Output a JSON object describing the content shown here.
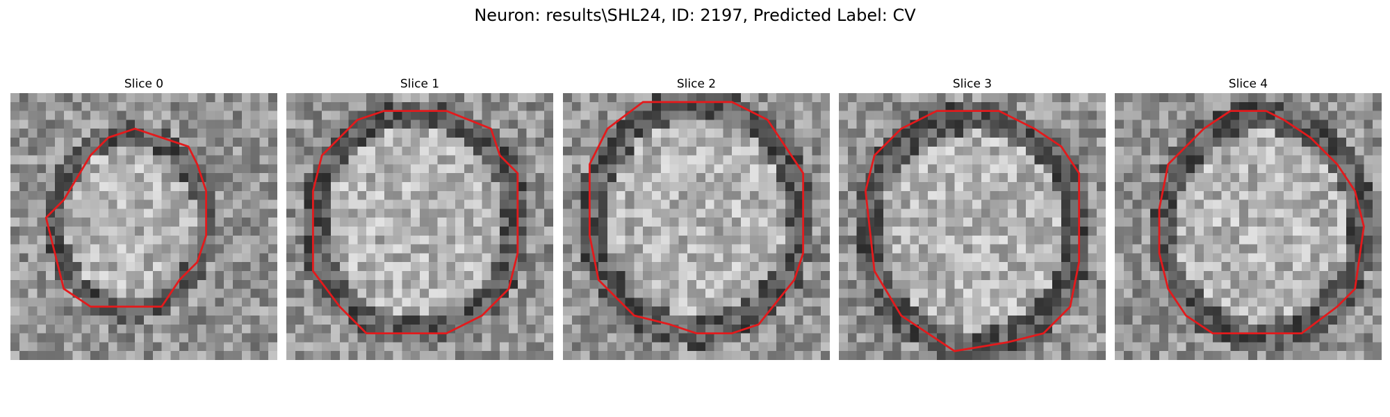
{
  "figure": {
    "title": "Neuron: results\\SHL24, ID: 2197, Predicted Label: CV"
  },
  "colors": {
    "background": "#ffffff",
    "contour": "#e31a1c",
    "pixel_dark": "#1e1e1e",
    "pixel_light": "#f4f4f4"
  },
  "panels": [
    {
      "title": "Slice 0"
    },
    {
      "title": "Slice 1"
    },
    {
      "title": "Slice 2"
    },
    {
      "title": "Slice 3"
    },
    {
      "title": "Slice 4"
    }
  ]
}
